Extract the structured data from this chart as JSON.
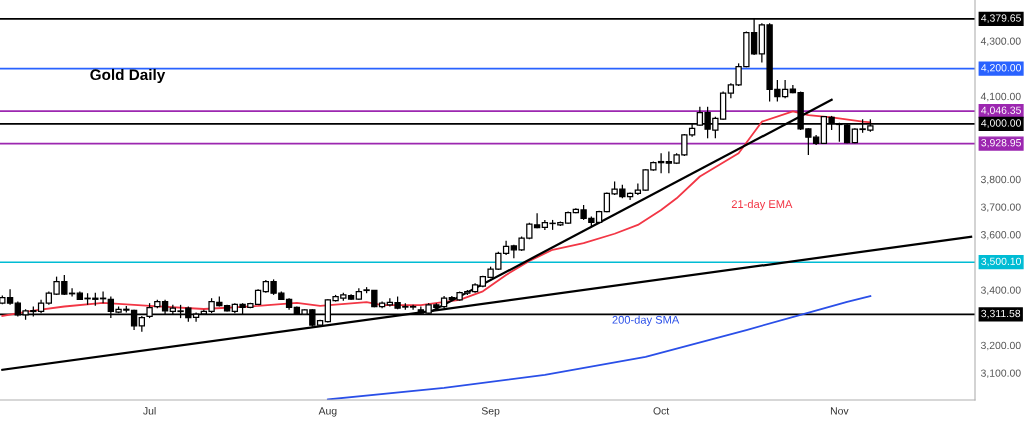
{
  "chart_data": {
    "type": "candlestick",
    "title": "Gold Daily",
    "categories": [
      null,
      null,
      null,
      null,
      null,
      null,
      null,
      null,
      null,
      null,
      null,
      null,
      null,
      null,
      null,
      null,
      null,
      null,
      null,
      "Jul",
      null,
      null,
      null,
      null,
      null,
      null,
      null,
      null,
      null,
      null,
      null,
      null,
      null,
      null,
      null,
      null,
      null,
      null,
      null,
      null,
      null,
      null,
      "Aug",
      null,
      null,
      null,
      null,
      null,
      null,
      null,
      null,
      null,
      null,
      null,
      null,
      null,
      null,
      null,
      null,
      null,
      null,
      null,
      null,
      "Sep",
      null,
      null,
      null,
      null,
      null,
      null,
      null,
      null,
      null,
      null,
      null,
      null,
      null,
      null,
      null,
      null,
      null,
      null,
      null,
      null,
      null,
      "Oct",
      null,
      null,
      null,
      null,
      null,
      null,
      null,
      null,
      null,
      null,
      null,
      null,
      null,
      null,
      null,
      null,
      null,
      null,
      null,
      null,
      null,
      null,
      "Nov",
      null,
      null,
      null,
      null,
      null,
      null,
      null,
      null,
      null,
      null,
      null,
      null,
      null,
      null,
      null,
      null,
      null
    ],
    "ohlc": [
      [
        3352,
        3380,
        3348,
        3372
      ],
      [
        3372,
        3402,
        3346,
        3352
      ],
      [
        3352,
        3358,
        3304,
        3310
      ],
      [
        3310,
        3330,
        3292,
        3324
      ],
      [
        3322,
        3340,
        3304,
        3325
      ],
      [
        3322,
        3364,
        3316,
        3352
      ],
      [
        3352,
        3394,
        3346,
        3388
      ],
      [
        3385,
        3448,
        3382,
        3430
      ],
      [
        3430,
        3454,
        3382,
        3385
      ],
      [
        3386,
        3406,
        3376,
        3388
      ],
      [
        3388,
        3394,
        3364,
        3366
      ],
      [
        3370,
        3388,
        3346,
        3368
      ],
      [
        3366,
        3390,
        3343,
        3370
      ],
      [
        3368,
        3394,
        3352,
        3370
      ],
      [
        3366,
        3376,
        3298,
        3322
      ],
      [
        3320,
        3340,
        3316,
        3330
      ],
      [
        3330,
        3342,
        3318,
        3327
      ],
      [
        3326,
        3328,
        3255,
        3270
      ],
      [
        3270,
        3306,
        3249,
        3300
      ],
      [
        3304,
        3352,
        3298,
        3336
      ],
      [
        3340,
        3364,
        3334,
        3358
      ],
      [
        3358,
        3364,
        3310,
        3324
      ],
      [
        3322,
        3346,
        3313,
        3334
      ],
      [
        3322,
        3346,
        3298,
        3324
      ],
      [
        3334,
        3340,
        3285,
        3300
      ],
      [
        3301,
        3318,
        3285,
        3312
      ],
      [
        3313,
        3328,
        3310,
        3322
      ],
      [
        3322,
        3370,
        3316,
        3358
      ],
      [
        3355,
        3376,
        3340,
        3343
      ],
      [
        3343,
        3346,
        3322,
        3324
      ],
      [
        3322,
        3352,
        3316,
        3348
      ],
      [
        3348,
        3352,
        3310,
        3337
      ],
      [
        3337,
        3354,
        3334,
        3350
      ],
      [
        3348,
        3402,
        3346,
        3398
      ],
      [
        3394,
        3436,
        3390,
        3430
      ],
      [
        3430,
        3438,
        3382,
        3388
      ],
      [
        3388,
        3394,
        3364,
        3366
      ],
      [
        3366,
        3370,
        3328,
        3337
      ],
      [
        3337,
        3340,
        3310,
        3312
      ],
      [
        3312,
        3330,
        3310,
        3328
      ],
      [
        3328,
        3330,
        3267,
        3273
      ],
      [
        3273,
        3292,
        3270,
        3289
      ],
      [
        3285,
        3366,
        3282,
        3364
      ],
      [
        3361,
        3382,
        3358,
        3376
      ],
      [
        3370,
        3390,
        3361,
        3382
      ],
      [
        3379,
        3384,
        3364,
        3367
      ],
      [
        3367,
        3406,
        3364,
        3394
      ],
      [
        3398,
        3410,
        3388,
        3400
      ],
      [
        3398,
        3400,
        3337,
        3340
      ],
      [
        3340,
        3358,
        3334,
        3352
      ],
      [
        3346,
        3370,
        3340,
        3355
      ],
      [
        3354,
        3376,
        3330,
        3334
      ],
      [
        3340,
        3352,
        3328,
        3338
      ],
      [
        3338,
        3346,
        3328,
        3340
      ],
      [
        3328,
        3340,
        3310,
        3316
      ],
      [
        3316,
        3352,
        3310,
        3346
      ],
      [
        3346,
        3352,
        3330,
        3337
      ],
      [
        3340,
        3378,
        3334,
        3370
      ],
      [
        3372,
        3378,
        3361,
        3366
      ],
      [
        3364,
        3394,
        3361,
        3390
      ],
      [
        3388,
        3400,
        3382,
        3394
      ],
      [
        3394,
        3424,
        3390,
        3418
      ],
      [
        3414,
        3451,
        3410,
        3448
      ],
      [
        3445,
        3484,
        3442,
        3475
      ],
      [
        3475,
        3538,
        3472,
        3532
      ],
      [
        3532,
        3578,
        3526,
        3557
      ],
      [
        3559,
        3563,
        3514,
        3545
      ],
      [
        3545,
        3593,
        3541,
        3587
      ],
      [
        3587,
        3643,
        3583,
        3638
      ],
      [
        3635,
        3677,
        3623,
        3625
      ],
      [
        3626,
        3653,
        3617,
        3643
      ],
      [
        3640,
        3653,
        3617,
        3641
      ],
      [
        3635,
        3647,
        3631,
        3643
      ],
      [
        3641,
        3683,
        3638,
        3679
      ],
      [
        3679,
        3695,
        3677,
        3691
      ],
      [
        3689,
        3707,
        3653,
        3659
      ],
      [
        3659,
        3665,
        3629,
        3644
      ],
      [
        3644,
        3686,
        3641,
        3683
      ],
      [
        3683,
        3752,
        3681,
        3749
      ],
      [
        3747,
        3792,
        3743,
        3764
      ],
      [
        3764,
        3780,
        3731,
        3737
      ],
      [
        3737,
        3752,
        3725,
        3749
      ],
      [
        3749,
        3785,
        3743,
        3761
      ],
      [
        3761,
        3836,
        3759,
        3834
      ],
      [
        3834,
        3864,
        3831,
        3860
      ],
      [
        3860,
        3894,
        3822,
        3864
      ],
      [
        3864,
        3900,
        3822,
        3858
      ],
      [
        3858,
        3894,
        3855,
        3888
      ],
      [
        3888,
        3964,
        3884,
        3960
      ],
      [
        3960,
        4002,
        3954,
        3984
      ],
      [
        3996,
        4062,
        3993,
        4041
      ],
      [
        4041,
        4062,
        3948,
        3981
      ],
      [
        3978,
        4026,
        3948,
        4020
      ],
      [
        4017,
        4117,
        4014,
        4111
      ],
      [
        4111,
        4147,
        4093,
        4141
      ],
      [
        4141,
        4219,
        4137,
        4207
      ],
      [
        4207,
        4334,
        4205,
        4330
      ],
      [
        4330,
        4380,
        4249,
        4253
      ],
      [
        4253,
        4364,
        4222,
        4358
      ],
      [
        4358,
        4364,
        4081,
        4125
      ],
      [
        4125,
        4159,
        4081,
        4099
      ],
      [
        4099,
        4159,
        4093,
        4125
      ],
      [
        4126,
        4141,
        4111,
        4113
      ],
      [
        4113,
        4117,
        3978,
        3982
      ],
      [
        3982,
        3984,
        3888,
        3952
      ],
      [
        3952,
        3960,
        3924,
        3930
      ],
      [
        3930,
        4029,
        3928,
        4026
      ],
      [
        4024,
        4029,
        3978,
        4002
      ],
      [
        4000,
        4004,
        3936,
        3998
      ],
      [
        3996,
        4002,
        3930,
        3932
      ],
      [
        3932,
        3984,
        3930,
        3981
      ],
      [
        3980,
        4017,
        3968,
        3982
      ],
      [
        3978,
        4017,
        3972,
        3993
      ],
      null,
      null,
      null,
      null,
      null,
      null,
      null,
      null,
      null,
      null,
      null,
      null,
      null
    ],
    "series": [
      {
        "name": "21-day EMA",
        "type": "line",
        "color": "#f23645",
        "values": [
          3306,
          null,
          null,
          null,
          3325,
          null,
          null,
          null,
          3340,
          null,
          null,
          null,
          null,
          3353,
          null,
          null,
          null,
          null,
          null,
          3342,
          null,
          null,
          null,
          null,
          null,
          null,
          3331,
          null,
          null,
          null,
          null,
          null,
          null,
          3342,
          null,
          null,
          null,
          null,
          3353,
          null,
          null,
          3342,
          null,
          null,
          null,
          null,
          null,
          3356,
          null,
          3345,
          null,
          null,
          null,
          null,
          3345,
          null,
          null,
          null,
          null,
          3364,
          null,
          null,
          3395,
          null,
          null,
          3454,
          null,
          null,
          3505,
          null,
          null,
          3545,
          null,
          null,
          null,
          3569,
          null,
          null,
          null,
          3603,
          null,
          null,
          3635,
          null,
          null,
          3689,
          null,
          3731,
          null,
          null,
          3810,
          null,
          null,
          null,
          null,
          3894,
          null,
          null,
          4008,
          null,
          null,
          null,
          4045,
          null,
          4032,
          null,
          null,
          4024,
          null,
          null,
          null,
          4008,
          4006,
          null,
          null,
          null,
          null,
          null,
          null,
          null,
          null,
          null,
          null,
          null,
          null,
          null
        ]
      },
      {
        "name": "200-day SMA",
        "type": "line",
        "color": "#2a4fe8",
        "values": [
          null,
          null,
          null,
          null,
          null,
          null,
          null,
          null,
          null,
          null,
          null,
          null,
          null,
          null,
          null,
          null,
          null,
          null,
          null,
          null,
          null,
          null,
          null,
          null,
          null,
          null,
          null,
          null,
          null,
          null,
          null,
          null,
          null,
          null,
          null,
          null,
          null,
          null,
          null,
          null,
          null,
          null,
          3004,
          null,
          null,
          null,
          null,
          null,
          null,
          null,
          null,
          null,
          null,
          null,
          null,
          null,
          null,
          3046,
          null,
          null,
          null,
          null,
          null,
          null,
          null,
          null,
          null,
          null,
          null,
          null,
          3093,
          null,
          null,
          null,
          null,
          null,
          null,
          null,
          null,
          null,
          null,
          null,
          null,
          3158,
          null,
          null,
          null,
          null,
          null,
          null,
          null,
          null,
          null,
          null,
          null,
          null,
          3255,
          null,
          null,
          null,
          null,
          null,
          null,
          3310,
          null,
          null,
          null,
          null,
          null,
          3357,
          null,
          null,
          3378,
          null,
          null,
          null,
          null,
          null,
          null,
          null,
          null,
          null,
          null,
          null,
          null,
          null
        ]
      },
      {
        "type": "line",
        "color": "#000000",
        "values": [
          3111,
          null,
          null,
          null,
          null,
          null,
          null,
          null,
          null,
          null,
          null,
          null,
          null,
          null,
          null,
          null,
          null,
          null,
          null,
          null,
          null,
          null,
          null,
          null,
          null,
          null,
          null,
          null,
          null,
          null,
          null,
          null,
          null,
          null,
          null,
          null,
          null,
          null,
          null,
          null,
          null,
          null,
          null,
          null,
          null,
          null,
          null,
          null,
          null,
          null,
          null,
          null,
          null,
          null,
          null,
          null,
          null,
          null,
          null,
          null,
          null,
          null,
          null,
          null,
          null,
          null,
          null,
          null,
          null,
          null,
          null,
          null,
          null,
          null,
          null,
          null,
          null,
          null,
          null,
          null,
          null,
          null,
          null,
          null,
          null,
          null,
          null,
          null,
          null,
          null,
          null,
          null,
          null,
          null,
          null,
          null,
          null,
          null,
          null,
          null,
          null,
          null,
          null,
          null,
          null,
          null,
          null,
          null,
          null,
          null,
          null,
          null,
          null,
          null,
          null,
          null,
          null,
          null,
          null,
          null,
          null,
          null,
          null,
          null,
          null,
          3592
        ]
      },
      {
        "type": "line",
        "color": "#000000",
        "values": [
          null,
          null,
          null,
          null,
          null,
          null,
          null,
          null,
          null,
          null,
          null,
          null,
          null,
          null,
          null,
          null,
          null,
          null,
          null,
          null,
          null,
          null,
          null,
          null,
          null,
          null,
          null,
          null,
          null,
          null,
          null,
          null,
          null,
          null,
          null,
          null,
          null,
          null,
          null,
          null,
          null,
          null,
          null,
          null,
          null,
          null,
          null,
          null,
          null,
          null,
          null,
          null,
          null,
          null,
          null,
          3317,
          null,
          null,
          null,
          null,
          null,
          null,
          null,
          null,
          null,
          null,
          null,
          null,
          null,
          null,
          null,
          null,
          null,
          null,
          null,
          null,
          null,
          null,
          null,
          null,
          null,
          null,
          null,
          null,
          null,
          null,
          null,
          null,
          null,
          null,
          null,
          null,
          null,
          null,
          null,
          null,
          null,
          null,
          null,
          null,
          null,
          null,
          null,
          null,
          null,
          null,
          null,
          4087,
          null,
          null,
          null,
          null,
          null,
          null,
          null,
          null,
          null,
          null,
          null,
          null,
          null,
          null,
          null,
          null,
          null,
          null
        ]
      }
    ],
    "ref_lines": [
      {
        "axis": "y",
        "value": 4379.65,
        "label": "4,379.65",
        "color": "#000000"
      },
      {
        "axis": "y",
        "value": 4200,
        "label": "4,200.00",
        "color": "#2962ff"
      },
      {
        "axis": "y",
        "value": 4046.35,
        "label": "4,046.35",
        "color": "#9c27b0"
      },
      {
        "axis": "y",
        "value": 4000,
        "label": "4,000.00",
        "color": "#000000"
      },
      {
        "axis": "y",
        "value": 3928.95,
        "label": "3,928.95",
        "color": "#9c27b0"
      },
      {
        "axis": "y",
        "value": 3500.1,
        "label": "3,500.10",
        "color": "#00bcd4"
      },
      {
        "axis": "y",
        "value": 3311.58,
        "label": "3,311.58",
        "color": "#000000"
      }
    ],
    "ylim": [
      3002,
      4448
    ],
    "yticks": [
      {
        "value": 3100,
        "label": "3,100.00"
      },
      {
        "value": 3200,
        "label": "3,200.00"
      },
      {
        "value": 3400,
        "label": "3,400.00"
      },
      {
        "value": 3600,
        "label": "3,600.00"
      },
      {
        "value": 3700,
        "label": "3,700.00"
      },
      {
        "value": 3800,
        "label": "3,800.00"
      },
      {
        "value": 4100,
        "label": "4,100.00"
      },
      {
        "value": 4300,
        "label": "4,300.00"
      }
    ],
    "grid": false,
    "legend": false
  }
}
